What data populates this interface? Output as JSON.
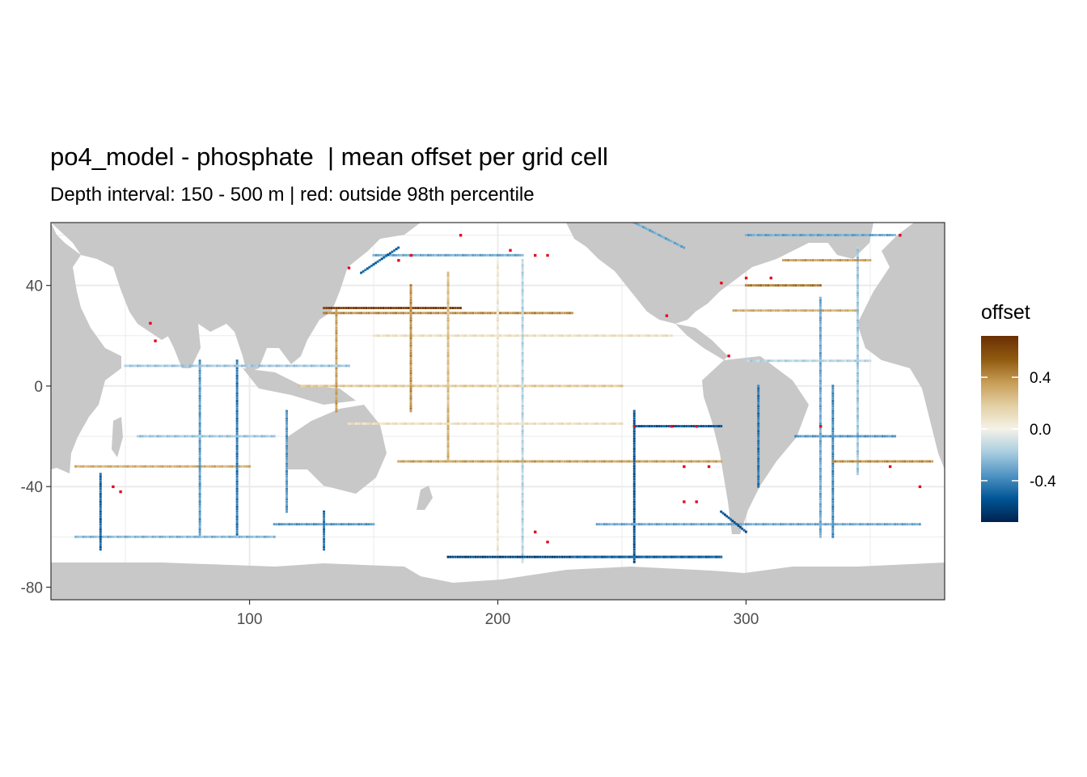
{
  "chart_data": {
    "type": "heatmap",
    "title": "po4_model - phosphate  | mean offset per grid cell",
    "subtitle": "Depth interval: 150 - 500 m | red: outside 98th percentile",
    "xlim": [
      20,
      380
    ],
    "ylim": [
      -85,
      65
    ],
    "x_ticks": [
      100,
      200,
      300
    ],
    "y_ticks": [
      40,
      0,
      -40,
      -80
    ],
    "grid": true,
    "legend": {
      "title": "offset",
      "position": "right",
      "ticks": [
        0.4,
        0.0,
        -0.4
      ],
      "range": [
        -0.72,
        0.72
      ],
      "colors": [
        "#00224e",
        "#005596",
        "#4f94c3",
        "#a9cde0",
        "#f5f2e8",
        "#e3d0a4",
        "#c79c55",
        "#8f5a0f",
        "#6b2f04"
      ]
    },
    "colors": {
      "land": "#c8c8c8",
      "ocean": "#ffffff",
      "outlier": "#e6081b",
      "gridline": "#ebebeb"
    },
    "sections": [
      {
        "x1": 130,
        "y1": 31,
        "x2": 185,
        "y2": 31,
        "value": 0.65
      },
      {
        "x1": 130,
        "y1": 29,
        "x2": 230,
        "y2": 29,
        "value": 0.4
      },
      {
        "x1": 150,
        "y1": 20,
        "x2": 270,
        "y2": 20,
        "value": 0.1
      },
      {
        "x1": 120,
        "y1": 0,
        "x2": 250,
        "y2": 0,
        "value": 0.2
      },
      {
        "x1": 135,
        "y1": 30,
        "x2": 135,
        "y2": -10,
        "value": 0.35
      },
      {
        "x1": 165,
        "y1": 40,
        "x2": 165,
        "y2": -10,
        "value": 0.4
      },
      {
        "x1": 180,
        "y1": 45,
        "x2": 180,
        "y2": -20,
        "value": 0.25
      },
      {
        "x1": 200,
        "y1": 50,
        "x2": 200,
        "y2": -70,
        "value": 0.05
      },
      {
        "x1": 210,
        "y1": 50,
        "x2": 210,
        "y2": -70,
        "value": -0.15
      },
      {
        "x1": 160,
        "y1": -30,
        "x2": 290,
        "y2": -30,
        "value": 0.35
      },
      {
        "x1": 180,
        "y1": -10,
        "x2": 180,
        "y2": -30,
        "value": 0.3
      },
      {
        "x1": 140,
        "y1": -15,
        "x2": 250,
        "y2": -15,
        "value": 0.1
      },
      {
        "x1": 255,
        "y1": -10,
        "x2": 255,
        "y2": -70,
        "value": -0.55
      },
      {
        "x1": 255,
        "y1": -16,
        "x2": 290,
        "y2": -16,
        "value": -0.55
      },
      {
        "x1": 180,
        "y1": -68,
        "x2": 290,
        "y2": -68,
        "value": -0.6
      },
      {
        "x1": 230,
        "y1": -68,
        "x2": 290,
        "y2": -68,
        "value": -0.5
      },
      {
        "x1": 240,
        "y1": -55,
        "x2": 290,
        "y2": -55,
        "value": -0.3
      },
      {
        "x1": 150,
        "y1": 52,
        "x2": 210,
        "y2": 52,
        "value": -0.3
      },
      {
        "x1": 145,
        "y1": 45,
        "x2": 160,
        "y2": 55,
        "value": -0.5
      },
      {
        "x1": 30,
        "y1": -32,
        "x2": 100,
        "y2": -32,
        "value": 0.3
      },
      {
        "x1": 95,
        "y1": 10,
        "x2": 95,
        "y2": -60,
        "value": -0.45
      },
      {
        "x1": 80,
        "y1": 10,
        "x2": 80,
        "y2": -60,
        "value": -0.35
      },
      {
        "x1": 50,
        "y1": 8,
        "x2": 140,
        "y2": 8,
        "value": -0.2
      },
      {
        "x1": 115,
        "y1": -10,
        "x2": 115,
        "y2": -50,
        "value": -0.35
      },
      {
        "x1": 55,
        "y1": -20,
        "x2": 110,
        "y2": -20,
        "value": -0.2
      },
      {
        "x1": 30,
        "y1": -60,
        "x2": 110,
        "y2": -60,
        "value": -0.25
      },
      {
        "x1": 40,
        "y1": -35,
        "x2": 40,
        "y2": -65,
        "value": -0.5
      },
      {
        "x1": 110,
        "y1": -55,
        "x2": 150,
        "y2": -55,
        "value": -0.35
      },
      {
        "x1": 130,
        "y1": -50,
        "x2": 130,
        "y2": -65,
        "value": -0.45
      },
      {
        "x1": 295,
        "y1": 30,
        "x2": 345,
        "y2": 30,
        "value": 0.3
      },
      {
        "x1": 300,
        "y1": 40,
        "x2": 330,
        "y2": 40,
        "value": 0.45
      },
      {
        "x1": 330,
        "y1": 35,
        "x2": 330,
        "y2": -60,
        "value": -0.3
      },
      {
        "x1": 335,
        "y1": 0,
        "x2": 335,
        "y2": -60,
        "value": -0.4
      },
      {
        "x1": 345,
        "y1": 55,
        "x2": 345,
        "y2": -35,
        "value": -0.2
      },
      {
        "x1": 300,
        "y1": 10,
        "x2": 350,
        "y2": 10,
        "value": -0.15
      },
      {
        "x1": 320,
        "y1": -20,
        "x2": 360,
        "y2": -20,
        "value": -0.35
      },
      {
        "x1": 335,
        "y1": -30,
        "x2": 375,
        "y2": -30,
        "value": 0.4
      },
      {
        "x1": 290,
        "y1": -55,
        "x2": 370,
        "y2": -55,
        "value": -0.3
      },
      {
        "x1": 300,
        "y1": 60,
        "x2": 360,
        "y2": 60,
        "value": -0.3
      },
      {
        "x1": 315,
        "y1": 50,
        "x2": 350,
        "y2": 50,
        "value": 0.35
      },
      {
        "x1": 305,
        "y1": 0,
        "x2": 305,
        "y2": -40,
        "value": -0.45
      },
      {
        "x1": 290,
        "y1": -50,
        "x2": 300,
        "y2": -58,
        "value": -0.55
      },
      {
        "x1": 255,
        "y1": 65,
        "x2": 275,
        "y2": 55,
        "value": -0.3
      }
    ],
    "outliers": [
      [
        45,
        -40
      ],
      [
        48,
        -42
      ],
      [
        60,
        25
      ],
      [
        62,
        18
      ],
      [
        160,
        50
      ],
      [
        165,
        52
      ],
      [
        140,
        47
      ],
      [
        255,
        -16
      ],
      [
        270,
        -16
      ],
      [
        280,
        -16
      ],
      [
        275,
        -32
      ],
      [
        285,
        -32
      ],
      [
        215,
        -58
      ],
      [
        220,
        -62
      ],
      [
        275,
        -46
      ],
      [
        280,
        -46
      ],
      [
        293,
        12
      ],
      [
        300,
        43
      ],
      [
        310,
        43
      ],
      [
        290,
        41
      ],
      [
        268,
        28
      ],
      [
        362,
        60
      ],
      [
        330,
        -16
      ],
      [
        358,
        -32
      ],
      [
        205,
        54
      ],
      [
        215,
        52
      ],
      [
        185,
        60
      ],
      [
        220,
        52
      ],
      [
        370,
        -40
      ]
    ]
  }
}
